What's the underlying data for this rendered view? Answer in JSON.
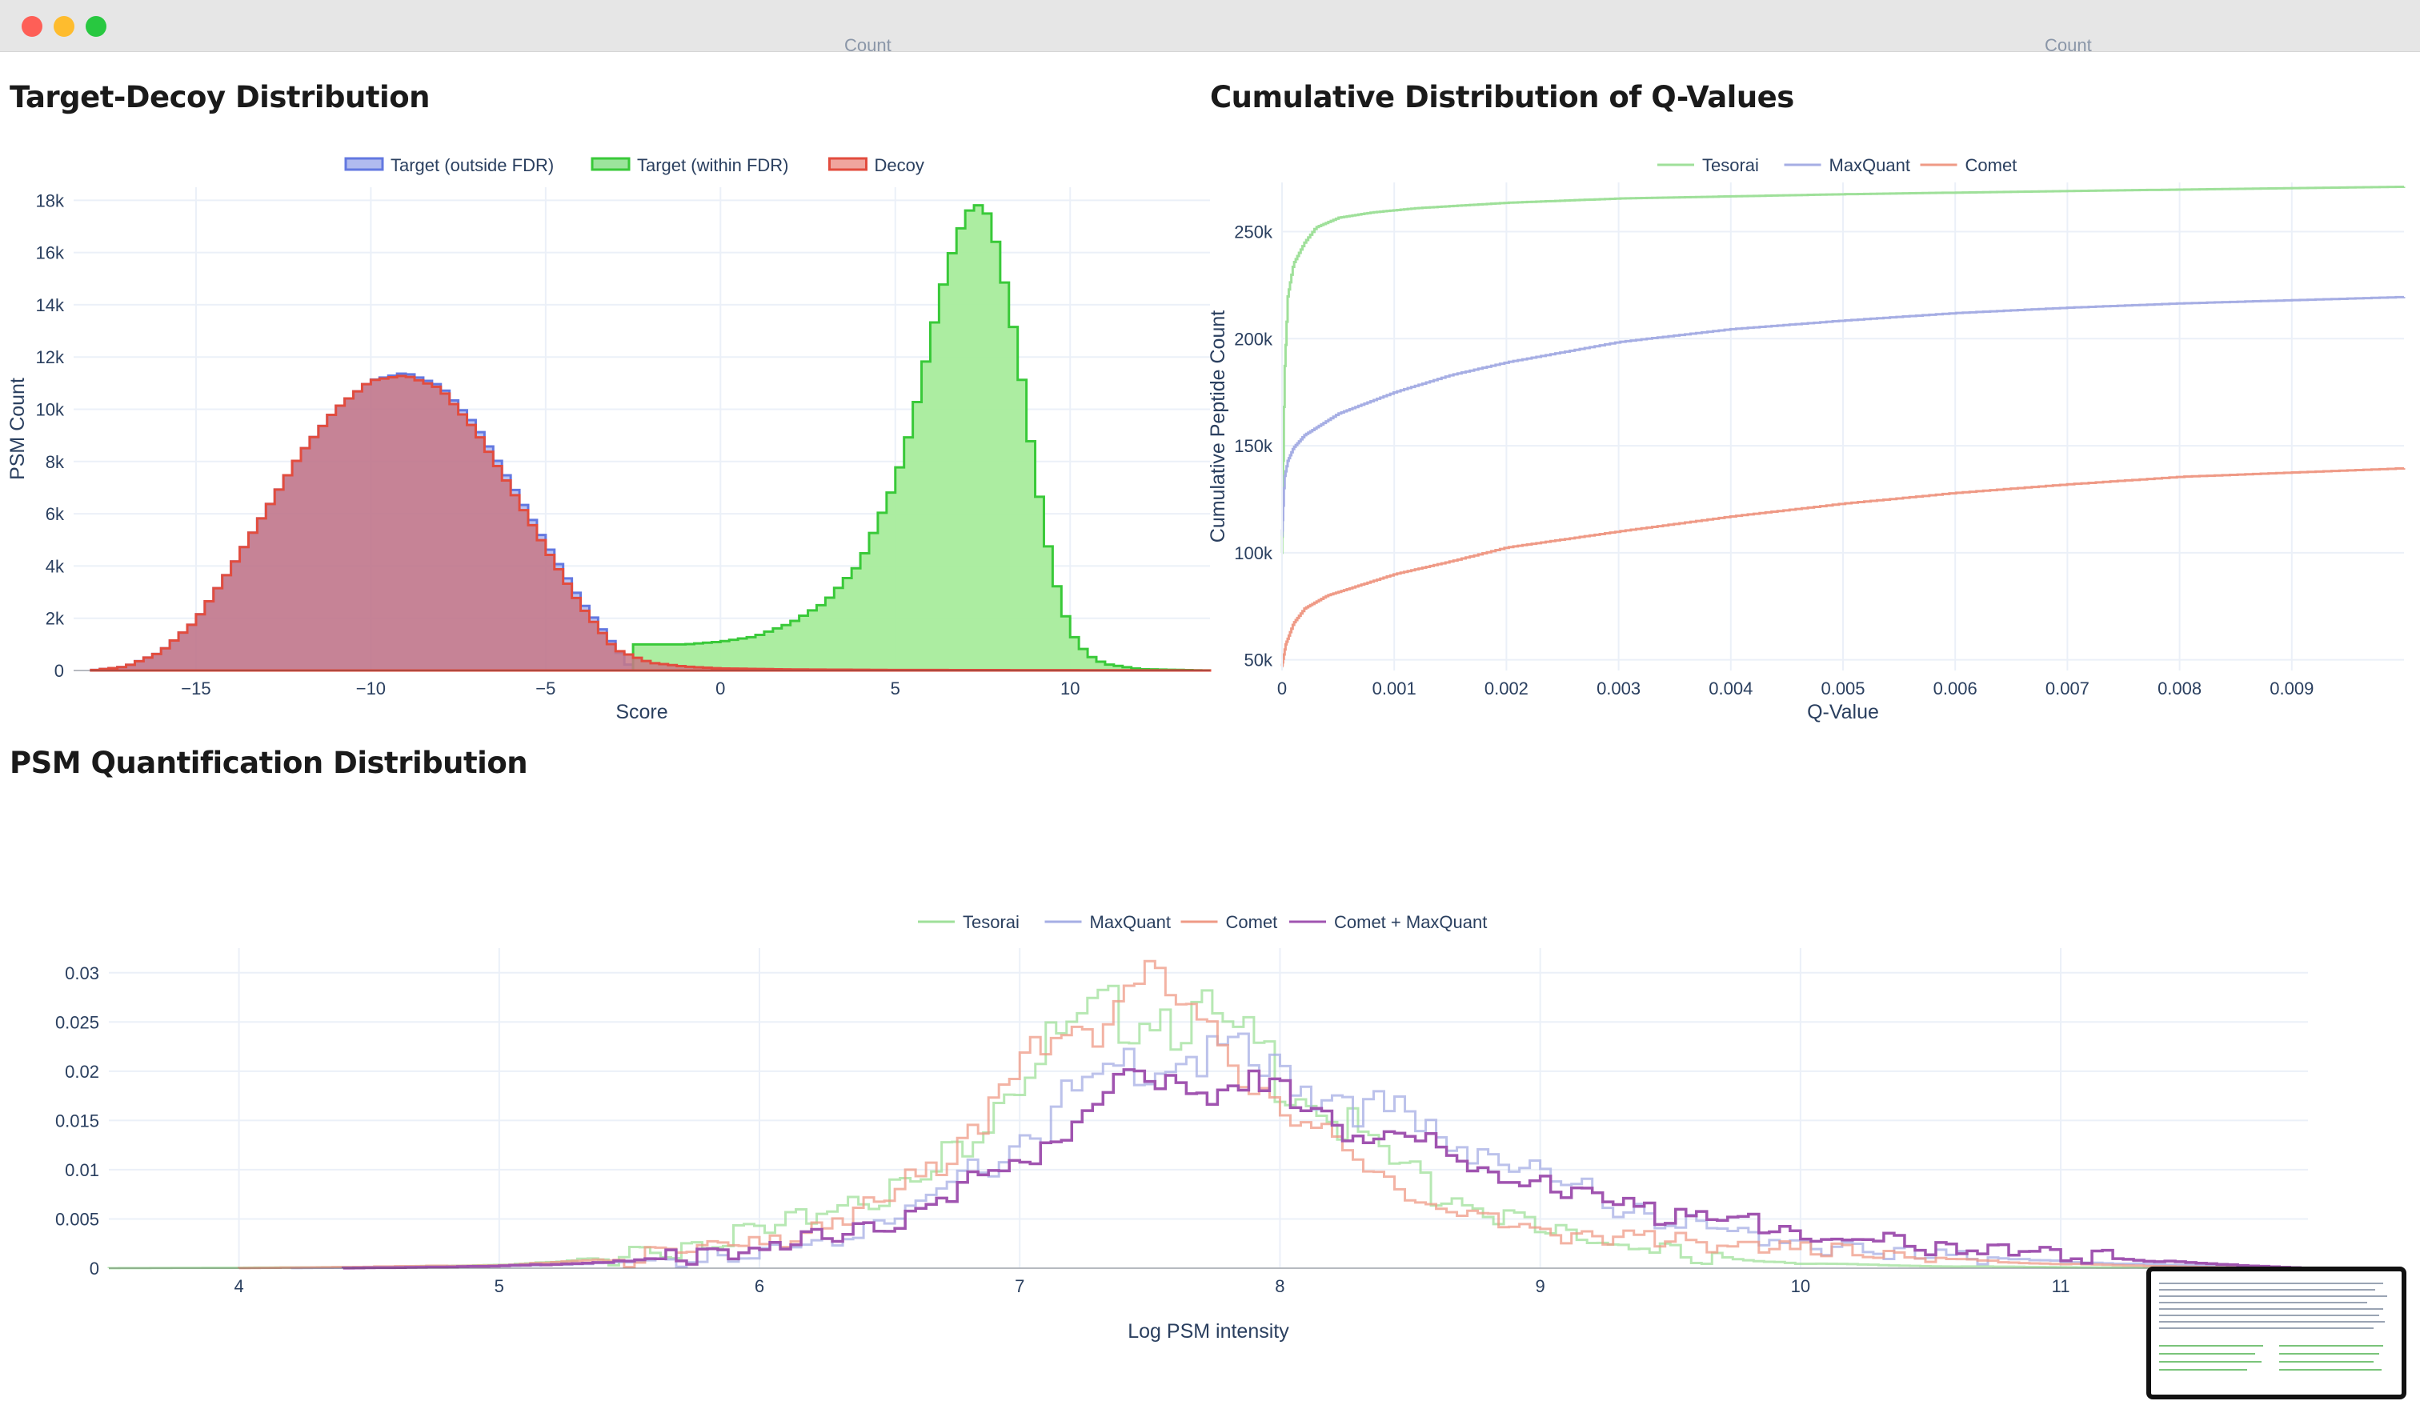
{
  "window": {
    "controls": [
      "close",
      "minimize",
      "maximize"
    ],
    "cutoff_labels": [
      "Count",
      "Count"
    ]
  },
  "sections": {
    "target_decoy_title": "Target-Decoy Distribution",
    "qvalue_title": "Cumulative Distribution of Q-Values",
    "quant_title": "PSM Quantification Distribution"
  },
  "colors": {
    "target_outside": "#6378e0",
    "target_within": "#39c939",
    "target_within_fill": "#a8ec9c",
    "decoy": "#e24c3e",
    "overlap_fill": "#c87886",
    "tesorai": "#9fe09a",
    "maxquant": "#a6aee4",
    "comet": "#ef9a86",
    "comet_maxquant": "#a054b0"
  },
  "chart_data": [
    {
      "type": "area",
      "id": "target_decoy",
      "title": "Target-Decoy Distribution",
      "xlabel": "Score",
      "ylabel": "PSM Count",
      "xlim": [
        -18.5,
        14
      ],
      "ylim": [
        0,
        18500
      ],
      "xticks": [
        -15,
        -10,
        -5,
        0,
        5,
        10
      ],
      "xtick_labels": [
        "−15",
        "−10",
        "−5",
        "0",
        "5",
        "10"
      ],
      "yticks": [
        0,
        2000,
        4000,
        6000,
        8000,
        10000,
        12000,
        14000,
        16000,
        18000
      ],
      "ytick_labels": [
        "0",
        "2k",
        "4k",
        "6k",
        "8k",
        "10k",
        "12k",
        "14k",
        "16k",
        "18k"
      ],
      "legend": {
        "position": "top-center",
        "entries": [
          "Target (outside FDR)",
          "Target (within FDR)",
          "Decoy"
        ]
      },
      "grid": true,
      "series": [
        {
          "name": "Target (outside FDR)",
          "x": [
            -18,
            -17,
            -16,
            -15,
            -14,
            -13,
            -12,
            -11,
            -10,
            -9,
            -8,
            -7,
            -6,
            -5,
            -4,
            -3,
            -2.5
          ],
          "y": [
            0,
            150,
            700,
            1900,
            3900,
            6100,
            8300,
            10000,
            11100,
            11400,
            10900,
            9400,
            7200,
            4900,
            2700,
            900,
            0
          ]
        },
        {
          "name": "Target (within FDR)",
          "x": [
            -2.5,
            -1,
            0,
            1,
            2,
            3,
            4,
            5,
            5.5,
            6,
            6.5,
            7,
            7.3,
            7.7,
            8,
            8.5,
            9,
            9.5,
            10,
            10.5,
            11,
            12,
            14
          ],
          "y": [
            1000,
            1000,
            1100,
            1300,
            1800,
            2600,
            4100,
            7200,
            9500,
            12600,
            15500,
            17400,
            17900,
            17400,
            15700,
            12300,
            7600,
            3800,
            1500,
            600,
            250,
            50,
            0
          ]
        },
        {
          "name": "Decoy",
          "x": [
            -18,
            -17,
            -16,
            -15,
            -14,
            -13,
            -12,
            -11,
            -10,
            -9,
            -8,
            -7,
            -6,
            -5,
            -4,
            -3,
            -2,
            -1,
            0,
            2,
            5,
            10,
            14
          ],
          "y": [
            0,
            150,
            700,
            1900,
            3900,
            6100,
            8300,
            10000,
            11100,
            11300,
            10800,
            9200,
            7000,
            4700,
            2500,
            800,
            300,
            150,
            80,
            40,
            20,
            10,
            0
          ]
        }
      ]
    },
    {
      "type": "line",
      "id": "qvalue",
      "title": "Cumulative Distribution of Q-Values",
      "xlabel": "Q-Value",
      "ylabel": "Cumulative Peptide Count",
      "xlim": [
        0,
        0.01
      ],
      "ylim": [
        45000,
        273000
      ],
      "xticks": [
        0,
        0.001,
        0.002,
        0.003,
        0.004,
        0.005,
        0.006,
        0.007,
        0.008,
        0.009
      ],
      "xtick_labels": [
        "0",
        "0.001",
        "0.002",
        "0.003",
        "0.004",
        "0.005",
        "0.006",
        "0.007",
        "0.008",
        "0.009"
      ],
      "yticks": [
        50000,
        100000,
        150000,
        200000,
        250000
      ],
      "ytick_labels": [
        "50k",
        "100k",
        "150k",
        "200k",
        "250k"
      ],
      "legend": {
        "position": "top-center",
        "entries": [
          "Tesorai",
          "MaxQuant",
          "Comet"
        ]
      },
      "grid": true,
      "series": [
        {
          "name": "Tesorai",
          "x": [
            0,
            2e-05,
            5e-05,
            0.0001,
            0.0002,
            0.0003,
            0.0005,
            0.0008,
            0.0012,
            0.002,
            0.003,
            0.005,
            0.007,
            0.01
          ],
          "y": [
            100000,
            183000,
            220000,
            235000,
            245000,
            252000,
            256500,
            259000,
            261000,
            263500,
            265500,
            267500,
            269000,
            271000
          ]
        },
        {
          "name": "MaxQuant",
          "x": [
            0,
            2e-05,
            5e-05,
            0.0001,
            0.0002,
            0.0005,
            0.001,
            0.0015,
            0.002,
            0.003,
            0.004,
            0.005,
            0.006,
            0.007,
            0.008,
            0.009,
            0.01
          ],
          "y": [
            108000,
            135000,
            143000,
            149000,
            155000,
            165000,
            175000,
            183000,
            189000,
            198500,
            204500,
            208500,
            212000,
            214500,
            216500,
            218000,
            219500
          ]
        },
        {
          "name": "Comet",
          "x": [
            0,
            3e-05,
            0.0001,
            0.0002,
            0.0004,
            0.0007,
            0.001,
            0.0015,
            0.002,
            0.003,
            0.004,
            0.005,
            0.006,
            0.007,
            0.008,
            0.009,
            0.01
          ],
          "y": [
            47000,
            57000,
            67000,
            74000,
            80000,
            85000,
            90000,
            96000,
            102500,
            110000,
            117000,
            123000,
            128000,
            132000,
            135500,
            137500,
            139500
          ]
        }
      ]
    },
    {
      "type": "line",
      "id": "quant",
      "title": "PSM Quantification Distribution",
      "xlabel": "Log PSM intensity",
      "ylabel": "",
      "xlim": [
        3.5,
        11.95
      ],
      "ylim": [
        0,
        0.0325
      ],
      "xticks": [
        4,
        5,
        6,
        7,
        8,
        9,
        10,
        11
      ],
      "xtick_labels": [
        "4",
        "5",
        "6",
        "7",
        "8",
        "9",
        "10",
        "11"
      ],
      "yticks": [
        0,
        0.005,
        0.01,
        0.015,
        0.02,
        0.025,
        0.03
      ],
      "ytick_labels": [
        "0",
        "0.005",
        "0.01",
        "0.015",
        "0.02",
        "0.025",
        "0.03"
      ],
      "legend": {
        "position": "top-center",
        "entries": [
          "Tesorai",
          "MaxQuant",
          "Comet",
          "Comet + MaxQuant"
        ]
      },
      "grid": true,
      "series": [
        {
          "name": "Tesorai",
          "x": [
            3.5,
            4.5,
            5.0,
            5.5,
            5.8,
            6.0,
            6.2,
            6.4,
            6.6,
            6.8,
            7.0,
            7.2,
            7.4,
            7.5,
            7.7,
            7.9,
            8.1,
            8.3,
            8.5,
            8.7,
            9.0,
            9.3,
            9.6,
            10.0,
            10.5,
            11.0,
            11.95
          ],
          "y": [
            0,
            0.0001,
            0.0003,
            0.0012,
            0.0025,
            0.004,
            0.0058,
            0.0072,
            0.0085,
            0.013,
            0.02,
            0.024,
            0.026,
            0.0265,
            0.025,
            0.022,
            0.0175,
            0.0135,
            0.0095,
            0.0065,
            0.004,
            0.0025,
            0.0012,
            0.0005,
            0.0002,
            0.0001,
            0
          ]
        },
        {
          "name": "MaxQuant",
          "x": [
            4.2,
            5.0,
            5.5,
            6.0,
            6.3,
            6.6,
            6.9,
            7.2,
            7.5,
            7.8,
            8.0,
            8.3,
            8.6,
            8.9,
            9.2,
            9.5,
            9.8,
            10.1,
            10.4,
            10.8,
            11.2,
            11.6,
            11.95
          ],
          "y": [
            0,
            0.0002,
            0.0006,
            0.0018,
            0.003,
            0.006,
            0.011,
            0.017,
            0.0212,
            0.0215,
            0.0195,
            0.017,
            0.0135,
            0.0105,
            0.0075,
            0.005,
            0.0035,
            0.0022,
            0.0014,
            0.0009,
            0.0005,
            0.0002,
            0
          ]
        },
        {
          "name": "Comet",
          "x": [
            4.0,
            5.0,
            5.4,
            5.8,
            6.1,
            6.4,
            6.7,
            7.0,
            7.2,
            7.4,
            7.45,
            7.6,
            7.8,
            8.0,
            8.2,
            8.4,
            8.6,
            8.8,
            9.0,
            9.3,
            9.6,
            10.0,
            10.4,
            10.8,
            11.2,
            11.6,
            11.95
          ],
          "y": [
            0,
            0.0003,
            0.0008,
            0.0018,
            0.003,
            0.0055,
            0.011,
            0.019,
            0.0245,
            0.027,
            0.031,
            0.0265,
            0.022,
            0.017,
            0.0125,
            0.009,
            0.0065,
            0.0048,
            0.0038,
            0.003,
            0.0025,
            0.0018,
            0.0012,
            0.0006,
            0.0003,
            0.0001,
            0
          ]
        },
        {
          "name": "Comet + MaxQuant",
          "x": [
            4.4,
            5.0,
            5.5,
            5.9,
            6.2,
            6.5,
            6.8,
            7.1,
            7.4,
            7.5,
            7.7,
            7.9,
            8.1,
            8.3,
            8.5,
            8.7,
            8.9,
            9.1,
            9.4,
            9.7,
            10.0,
            10.4,
            10.8,
            11.2,
            11.6,
            11.95
          ],
          "y": [
            0,
            0.0002,
            0.0007,
            0.0015,
            0.0028,
            0.0045,
            0.008,
            0.013,
            0.018,
            0.0195,
            0.019,
            0.018,
            0.0165,
            0.0145,
            0.0125,
            0.0105,
            0.0092,
            0.0075,
            0.006,
            0.0048,
            0.0035,
            0.0025,
            0.0018,
            0.001,
            0.0004,
            0
          ]
        }
      ]
    }
  ]
}
